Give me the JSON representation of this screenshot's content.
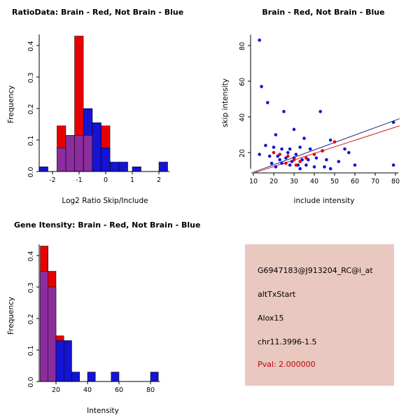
{
  "colors": {
    "red": "#e60000",
    "blue": "#1414d2",
    "purple": "#8c2d9e",
    "line_blue": "#2b2b80",
    "line_red": "#cc2222",
    "info_bg": "#e9c8c0",
    "pval_red": "#c00000",
    "axis": "#000000"
  },
  "chart_data": [
    {
      "type": "bar",
      "title": "RatioData: Brain - Red, Not Brain - Blue",
      "xlabel": "Log2 Ratio Skip/Include",
      "ylabel": "Frequency",
      "xlim": [
        -2.55,
        2.4
      ],
      "ylim": [
        0,
        0.435
      ],
      "xticks": [
        -2,
        -1,
        0,
        1,
        2
      ],
      "yticks": [
        0,
        0.1,
        0.2,
        0.3,
        0.4
      ],
      "ytick_decimals": 1,
      "bin_width": 0.33,
      "groups": {
        "red": "Brain",
        "blue": "Not Brain",
        "purple": "Overlap"
      },
      "bars": [
        {
          "x": -2.5,
          "h": 0.015,
          "color": "blue"
        },
        {
          "x": -1.83,
          "h": 0.145,
          "color": "red"
        },
        {
          "x": -1.83,
          "h": 0.075,
          "color": "purple"
        },
        {
          "x": -1.5,
          "h": 0.115,
          "color": "purple"
        },
        {
          "x": -1.17,
          "h": 0.43,
          "color": "red"
        },
        {
          "x": -1.17,
          "h": 0.115,
          "color": "purple"
        },
        {
          "x": -0.83,
          "h": 0.2,
          "color": "blue"
        },
        {
          "x": -0.83,
          "h": 0.115,
          "color": "purple"
        },
        {
          "x": -0.5,
          "h": 0.155,
          "color": "blue"
        },
        {
          "x": -0.17,
          "h": 0.145,
          "color": "red"
        },
        {
          "x": -0.17,
          "h": 0.075,
          "color": "blue"
        },
        {
          "x": 0.17,
          "h": 0.03,
          "color": "blue"
        },
        {
          "x": 0.5,
          "h": 0.03,
          "color": "blue"
        },
        {
          "x": 1.0,
          "h": 0.015,
          "color": "blue"
        },
        {
          "x": 2.0,
          "h": 0.03,
          "color": "blue"
        }
      ]
    },
    {
      "type": "scatter",
      "title": "Brain - Red, Not Brain - Blue",
      "xlabel": "include intensity",
      "ylabel": "skip intensity",
      "xlim": [
        9,
        81.5
      ],
      "ylim": [
        11,
        86
      ],
      "xticks": [
        10,
        20,
        30,
        40,
        50,
        60,
        70,
        80
      ],
      "yticks": [
        20,
        40,
        60,
        80
      ],
      "series": [
        {
          "name": "Not Brain",
          "color": "blue",
          "points": [
            [
              13,
              83
            ],
            [
              14,
              57
            ],
            [
              17,
              48
            ],
            [
              25,
              43
            ],
            [
              43,
              43
            ],
            [
              30,
              33
            ],
            [
              21,
              30
            ],
            [
              35,
              28
            ],
            [
              48,
              27
            ],
            [
              16,
              24
            ],
            [
              20,
              23
            ],
            [
              24,
              22
            ],
            [
              28,
              22
            ],
            [
              33,
              23
            ],
            [
              38,
              22
            ],
            [
              44,
              21
            ],
            [
              55,
              22
            ],
            [
              57,
              20
            ],
            [
              13,
              19
            ],
            [
              18,
              18
            ],
            [
              22,
              18
            ],
            [
              26,
              17
            ],
            [
              30,
              17
            ],
            [
              34,
              16
            ],
            [
              37,
              16
            ],
            [
              41,
              17
            ],
            [
              46,
              16
            ],
            [
              52,
              15
            ],
            [
              24,
              14
            ],
            [
              28,
              13
            ],
            [
              32,
              13
            ],
            [
              36,
              13
            ],
            [
              40,
              12
            ],
            [
              45,
              12
            ],
            [
              60,
              13
            ],
            [
              79,
              13
            ],
            [
              79,
              37
            ],
            [
              48,
              11
            ],
            [
              33,
              11
            ],
            [
              29,
              15
            ],
            [
              31,
              19
            ],
            [
              27,
              20
            ],
            [
              23,
              16
            ],
            [
              19,
              14
            ],
            [
              21,
              12
            ]
          ]
        },
        {
          "name": "Brain",
          "color": "red",
          "points": [
            [
              20,
              20
            ],
            [
              23,
              19
            ],
            [
              27,
              18
            ],
            [
              30,
              16
            ],
            [
              33,
              15
            ],
            [
              36,
              17
            ],
            [
              40,
              19
            ],
            [
              44,
              21
            ],
            [
              50,
              26
            ],
            [
              26,
              14
            ],
            [
              31,
              13
            ]
          ]
        }
      ],
      "lines": [
        {
          "color": "line_blue",
          "x1": 10,
          "y1": 9,
          "x2": 82,
          "y2": 39
        },
        {
          "color": "line_red",
          "x1": 10,
          "y1": 8.5,
          "x2": 82,
          "y2": 35
        }
      ]
    },
    {
      "type": "bar",
      "title": "Gene Itensity: Brain - Red, Not Brain - Blue",
      "xlabel": "Intensity",
      "ylabel": "Frequency",
      "xlim": [
        9,
        86
      ],
      "ylim": [
        0,
        0.435
      ],
      "xticks": [
        20,
        40,
        60,
        80
      ],
      "yticks": [
        0,
        0.1,
        0.2,
        0.3,
        0.4
      ],
      "ytick_decimals": 1,
      "bin_width": 5,
      "groups": {
        "red": "Brain",
        "blue": "Not Brain",
        "purple": "Overlap"
      },
      "bars": [
        {
          "x": 10,
          "h": 0.43,
          "color": "red"
        },
        {
          "x": 10,
          "h": 0.35,
          "color": "purple"
        },
        {
          "x": 15,
          "h": 0.35,
          "color": "red"
        },
        {
          "x": 15,
          "h": 0.3,
          "color": "purple"
        },
        {
          "x": 20,
          "h": 0.145,
          "color": "red"
        },
        {
          "x": 20,
          "h": 0.13,
          "color": "blue"
        },
        {
          "x": 25,
          "h": 0.13,
          "color": "blue"
        },
        {
          "x": 30,
          "h": 0.03,
          "color": "blue"
        },
        {
          "x": 40,
          "h": 0.03,
          "color": "blue"
        },
        {
          "x": 55,
          "h": 0.03,
          "color": "blue"
        },
        {
          "x": 80,
          "h": 0.03,
          "color": "blue"
        }
      ]
    }
  ],
  "info_panel": {
    "probe_id": "G6947183@J913204_RC@i_at",
    "event_type": "altTxStart",
    "gene": "Alox15",
    "location": "chr11.3996-1.5",
    "pval": "Pval: 2.000000"
  }
}
